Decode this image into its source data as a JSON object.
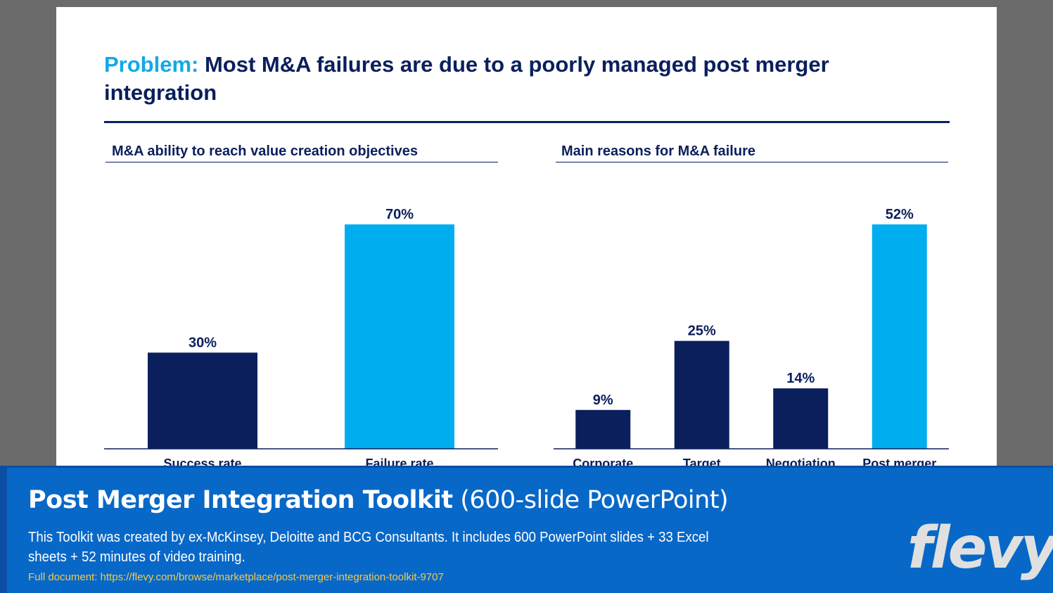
{
  "slide": {
    "title_label": "Problem:",
    "title_text": "Most M&A failures are due to a poorly managed post merger integration"
  },
  "colors": {
    "navy": "#0a1f5c",
    "cyan": "#00aeef",
    "banner": "#0868c8",
    "link": "#f2c94c"
  },
  "chart_data": [
    {
      "type": "bar",
      "title": "M&A ability to reach value creation objectives",
      "categories": [
        "Success rate",
        "Failure rate"
      ],
      "values": [
        30,
        70
      ],
      "labels": [
        "30%",
        "70%"
      ],
      "highlight": [
        false,
        true
      ],
      "ylim": [
        0,
        70
      ],
      "xlabel": "",
      "ylabel": "",
      "grid": false
    },
    {
      "type": "bar",
      "title": "Main reasons for M&A failure",
      "categories": [
        "Corporate",
        "Target",
        "Negotiation",
        "Post merger"
      ],
      "values": [
        9,
        25,
        14,
        52
      ],
      "labels": [
        "9%",
        "25%",
        "14%",
        "52%"
      ],
      "highlight": [
        false,
        false,
        false,
        true
      ],
      "ylim": [
        0,
        52
      ],
      "xlabel": "",
      "ylabel": "",
      "grid": false
    }
  ],
  "banner": {
    "title_bold": "Post Merger Integration Toolkit",
    "title_rest": "(600-slide PowerPoint)",
    "description": "This Toolkit was created by ex-McKinsey, Deloitte and BCG Consultants. It includes 600 PowerPoint slides + 33 Excel sheets + 52 minutes of video training.",
    "link": "Full document: https://flevy.com/browse/marketplace/post-merger-integration-toolkit-9707",
    "logo": "flevy"
  }
}
